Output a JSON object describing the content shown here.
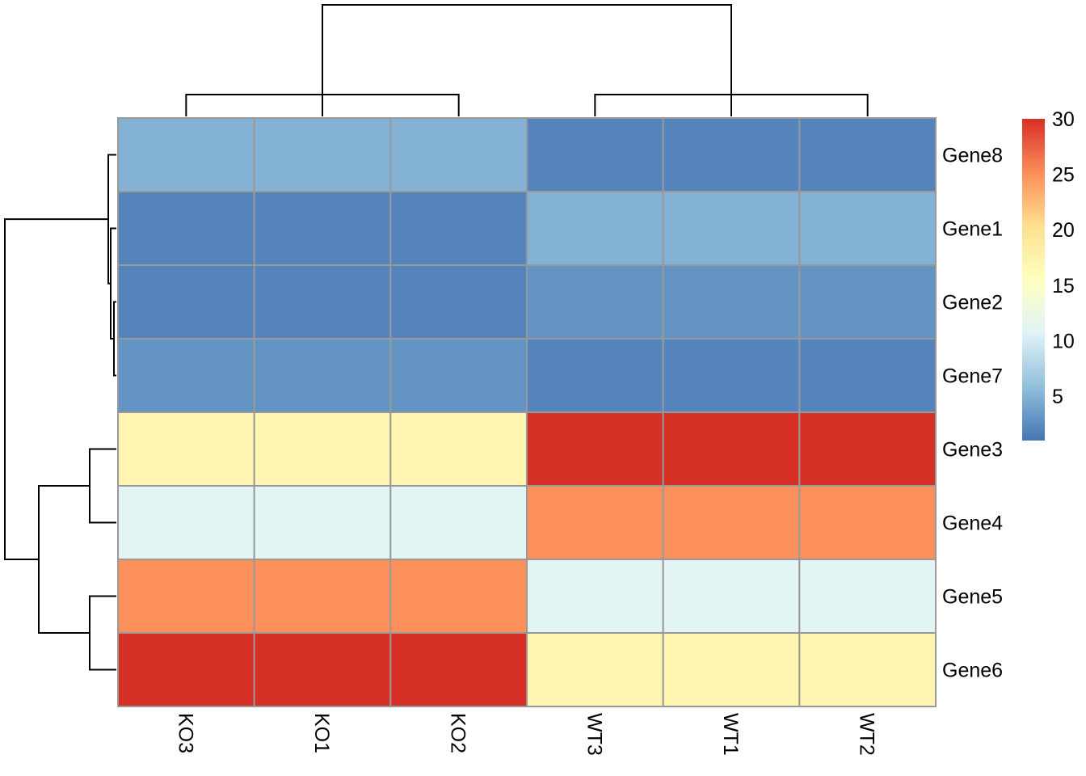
{
  "chart_data": {
    "type": "heatmap",
    "columns": [
      "KO3",
      "KO1",
      "KO2",
      "WT3",
      "WT1",
      "WT2"
    ],
    "rows": [
      "Gene8",
      "Gene1",
      "Gene2",
      "Gene7",
      "Gene3",
      "Gene4",
      "Gene5",
      "Gene6"
    ],
    "values": [
      [
        5,
        5,
        5,
        2,
        2,
        2
      ],
      [
        2,
        2,
        2,
        5,
        5,
        5
      ],
      [
        2,
        2,
        2,
        3,
        3,
        3
      ],
      [
        3,
        3,
        3,
        2,
        2,
        2
      ],
      [
        17,
        17,
        17,
        30,
        30,
        30
      ],
      [
        11,
        11,
        11,
        25,
        25,
        25
      ],
      [
        25,
        25,
        25,
        11,
        11,
        11
      ],
      [
        30,
        30,
        30,
        17,
        17,
        17
      ]
    ],
    "colorbar": {
      "ticks": [
        5,
        10,
        15,
        20,
        25,
        30
      ],
      "range": [
        1,
        30
      ],
      "colors": [
        "#4575B4",
        "#91BFDB",
        "#E0F3F8",
        "#FFFFBF",
        "#FEE090",
        "#FC8D59",
        "#D73027"
      ]
    },
    "row_dendrogram": true,
    "column_dendrogram": true
  }
}
